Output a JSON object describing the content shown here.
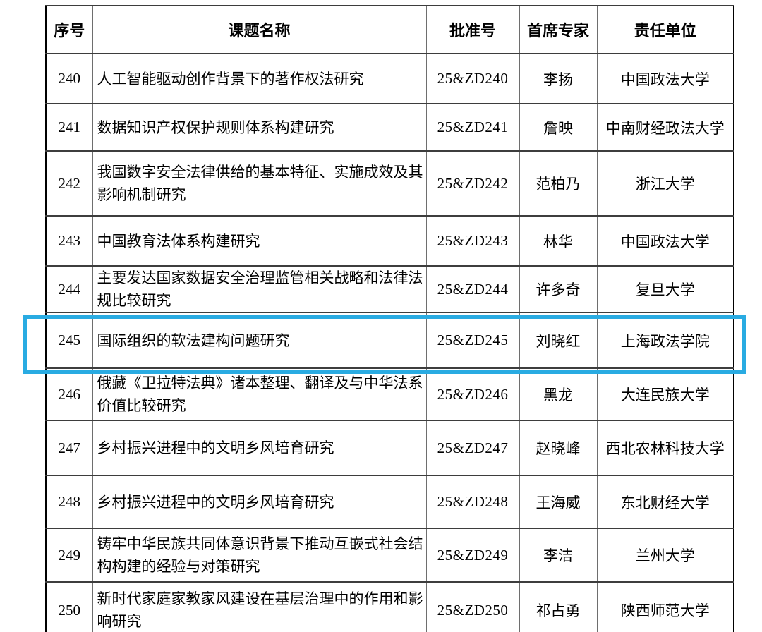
{
  "table": {
    "columns": [
      {
        "key": "no",
        "label": "序号"
      },
      {
        "key": "title",
        "label": "课题名称"
      },
      {
        "key": "grant",
        "label": "批准号"
      },
      {
        "key": "expert",
        "label": "首席专家"
      },
      {
        "key": "org",
        "label": "责任单位"
      }
    ],
    "rows": [
      {
        "no": "240",
        "title": "人工智能驱动创作背景下的著作权法研究",
        "grant": "25&ZD240",
        "expert": "李扬",
        "org": "中国政法大学",
        "highlighted": false
      },
      {
        "no": "241",
        "title": "数据知识产权保护规则体系构建研究",
        "grant": "25&ZD241",
        "expert": "詹映",
        "org": "中南财经政法大学",
        "highlighted": false
      },
      {
        "no": "242",
        "title": "我国数字安全法律供给的基本特征、实施成效及其影响机制研究",
        "grant": "25&ZD242",
        "expert": "范柏乃",
        "org": "浙江大学",
        "highlighted": false
      },
      {
        "no": "243",
        "title": "中国教育法体系构建研究",
        "grant": "25&ZD243",
        "expert": "林华",
        "org": "中国政法大学",
        "highlighted": false
      },
      {
        "no": "244",
        "title": "主要发达国家数据安全治理监管相关战略和法律法规比较研究",
        "grant": "25&ZD244",
        "expert": "许多奇",
        "org": "复旦大学",
        "highlighted": false
      },
      {
        "no": "245",
        "title": "国际组织的软法建构问题研究",
        "grant": "25&ZD245",
        "expert": "刘晓红",
        "org": "上海政法学院",
        "highlighted": true
      },
      {
        "no": "246",
        "title": "俄藏《卫拉特法典》诸本整理、翻译及与中华法系价值比较研究",
        "grant": "25&ZD246",
        "expert": "黑龙",
        "org": "大连民族大学",
        "highlighted": false
      },
      {
        "no": "247",
        "title": "乡村振兴进程中的文明乡风培育研究",
        "grant": "25&ZD247",
        "expert": "赵晓峰",
        "org": "西北农林科技大学",
        "highlighted": false
      },
      {
        "no": "248",
        "title": "乡村振兴进程中的文明乡风培育研究",
        "grant": "25&ZD248",
        "expert": "王海威",
        "org": "东北财经大学",
        "highlighted": false
      },
      {
        "no": "249",
        "title": "铸牢中华民族共同体意识背景下推动互嵌式社会结构构建的经验与对策研究",
        "grant": "25&ZD249",
        "expert": "李洁",
        "org": "兰州大学",
        "highlighted": false
      },
      {
        "no": "250",
        "title": "新时代家庭家教家风建设在基层治理中的作用和影响研究",
        "grant": "25&ZD250",
        "expert": "祁占勇",
        "org": "陕西师范大学",
        "highlighted": false
      }
    ]
  },
  "annotation": {
    "highlight_color": "#29abe2",
    "highlighted_row_no": "245"
  }
}
